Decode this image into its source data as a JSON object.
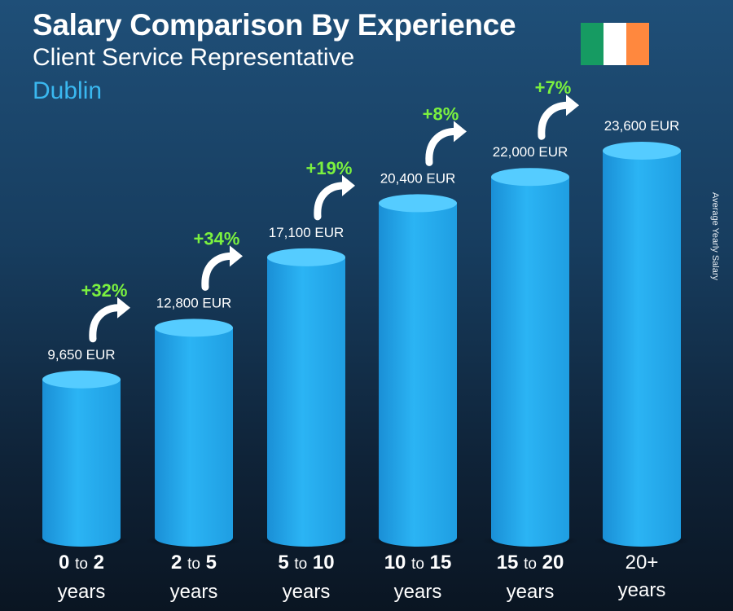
{
  "header": {
    "title": "Salary Comparison By Experience",
    "subtitle": "Client Service Representative",
    "location": "Dublin"
  },
  "flag": {
    "colors": [
      "#169b62",
      "#ffffff",
      "#ff883e"
    ]
  },
  "side_label": "Average Yearly Salary",
  "colors": {
    "bar": "#29b0f0",
    "bar_top": "#55ccff",
    "increase": "#7bf13f"
  },
  "chart_data": {
    "type": "bar",
    "categories": [
      "0 to 2 years",
      "2 to 5 years",
      "5 to 10 years",
      "10 to 15 years",
      "15 to 20 years",
      "20+ years"
    ],
    "category_parts": [
      {
        "a": "0",
        "to": "to",
        "b": "2",
        "unit": "years"
      },
      {
        "a": "2",
        "to": "to",
        "b": "5",
        "unit": "years"
      },
      {
        "a": "5",
        "to": "to",
        "b": "10",
        "unit": "years"
      },
      {
        "a": "10",
        "to": "to",
        "b": "15",
        "unit": "years"
      },
      {
        "a": "15",
        "to": "to",
        "b": "20",
        "unit": "years"
      },
      {
        "a": "20+",
        "to": "",
        "b": "",
        "unit": "years"
      }
    ],
    "values": [
      9650,
      12800,
      17100,
      20400,
      22000,
      23600
    ],
    "value_labels": [
      "9,650 EUR",
      "12,800 EUR",
      "17,100 EUR",
      "20,400 EUR",
      "22,000 EUR",
      "23,600 EUR"
    ],
    "increases": [
      "+32%",
      "+34%",
      "+19%",
      "+8%",
      "+7%"
    ],
    "ylabel": "Average Yearly Salary",
    "ylim": [
      0,
      25000
    ]
  }
}
